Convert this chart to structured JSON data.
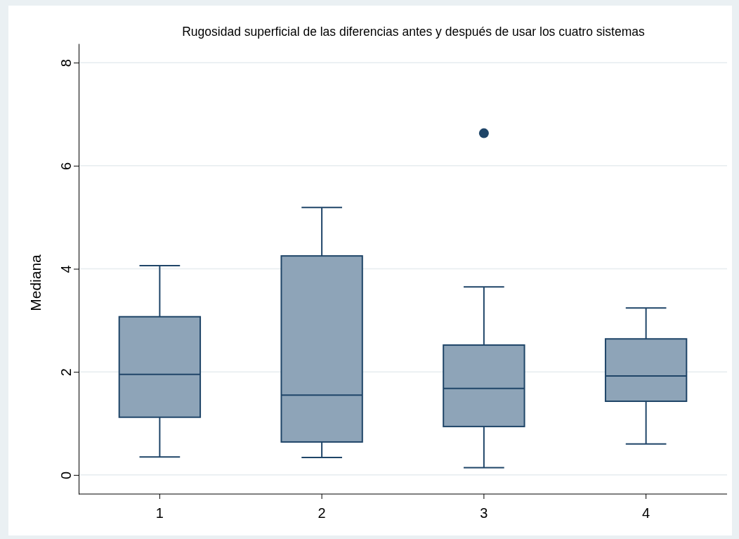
{
  "chart_data": {
    "type": "box",
    "title": "Rugosidad superficial de las diferencias antes y después de usar los cuatro sistemas",
    "ylabel": "Mediana",
    "categories": [
      "1",
      "2",
      "3",
      "4"
    ],
    "color": "#8ea4b8",
    "boxes": [
      {
        "low": 0.35,
        "q1": 1.12,
        "median": 1.95,
        "q3": 3.07,
        "high": 4.06
      },
      {
        "low": 0.34,
        "q1": 0.64,
        "median": 1.55,
        "q3": 4.25,
        "high": 5.19
      },
      {
        "low": 0.14,
        "q1": 0.94,
        "median": 1.68,
        "q3": 2.52,
        "high": 3.65,
        "outliers": [
          6.63
        ]
      },
      {
        "low": 0.6,
        "q1": 1.43,
        "median": 1.92,
        "q3": 2.64,
        "high": 3.24
      }
    ],
    "ylim": [
      -0.37,
      8.37
    ],
    "yticks": [
      0,
      2,
      4,
      6,
      8
    ],
    "grid": "y"
  }
}
